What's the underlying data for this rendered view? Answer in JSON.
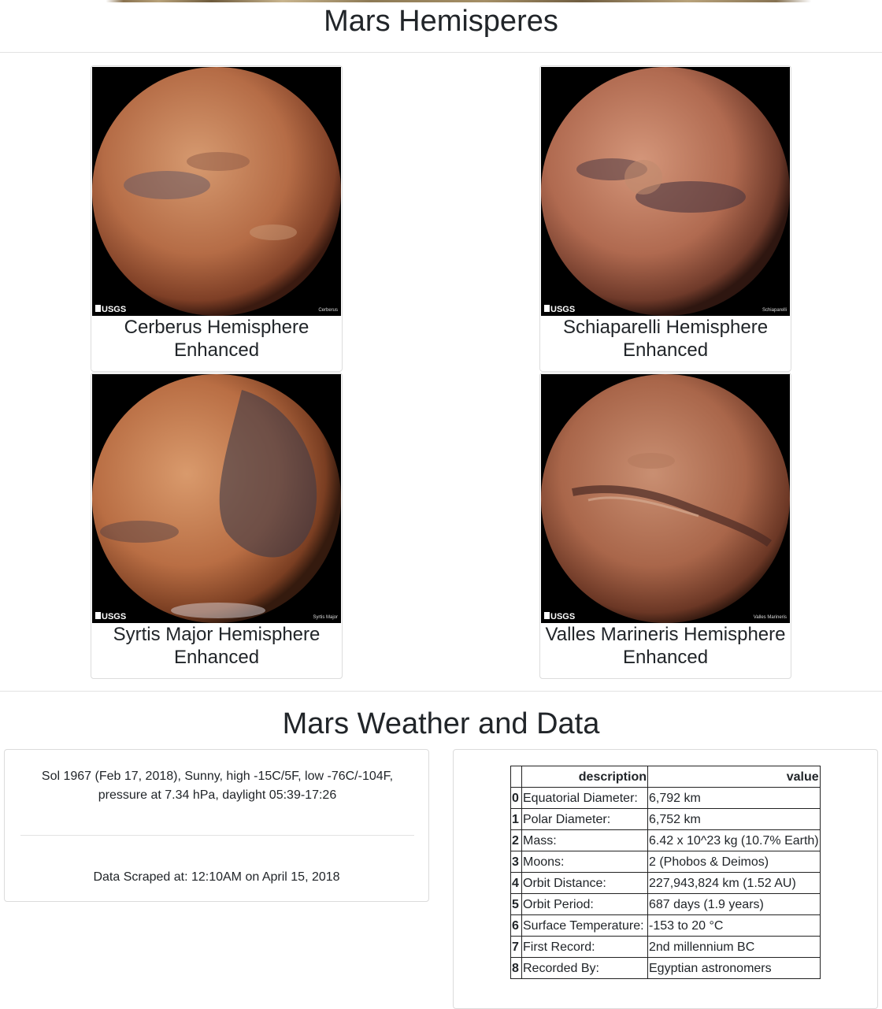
{
  "page": {
    "title": "Mars Hemisperes"
  },
  "hemispheres": [
    {
      "title": "Cerberus Hemisphere Enhanced",
      "image_label": "Cerberus",
      "logo": "USGS"
    },
    {
      "title": "Schiaparelli Hemisphere Enhanced",
      "image_label": "Schiaparelli",
      "logo": "USGS"
    },
    {
      "title": "Syrtis Major Hemisphere Enhanced",
      "image_label": "Syrtis Major",
      "logo": "USGS"
    },
    {
      "title": "Valles Marineris Hemisphere Enhanced",
      "image_label": "Valles Marineris",
      "logo": "USGS"
    }
  ],
  "weather_section": {
    "title": "Mars Weather and Data",
    "weather": "Sol 1967 (Feb 17, 2018), Sunny, high -15C/5F, low -76C/-104F, pressure at 7.34 hPa, daylight 05:39-17:26",
    "scraped": "Data Scraped at: 12:10AM on April 15, 2018"
  },
  "facts": {
    "headers": {
      "description": "description",
      "value": "value"
    },
    "rows": [
      {
        "index": "0",
        "description": "Equatorial Diameter:",
        "value": "6,792 km"
      },
      {
        "index": "1",
        "description": "Polar Diameter:",
        "value": "6,752 km"
      },
      {
        "index": "2",
        "description": "Mass:",
        "value": "6.42 x 10^23 kg (10.7% Earth)"
      },
      {
        "index": "3",
        "description": "Moons:",
        "value": "2 (Phobos & Deimos)"
      },
      {
        "index": "4",
        "description": "Orbit Distance:",
        "value": "227,943,824 km (1.52 AU)"
      },
      {
        "index": "5",
        "description": "Orbit Period:",
        "value": "687 days (1.9 years)"
      },
      {
        "index": "6",
        "description": "Surface Temperature:",
        "value": "-153 to 20 °C"
      },
      {
        "index": "7",
        "description": "First Record:",
        "value": "2nd millennium BC"
      },
      {
        "index": "8",
        "description": "Recorded By:",
        "value": "Egyptian astronomers"
      }
    ]
  }
}
